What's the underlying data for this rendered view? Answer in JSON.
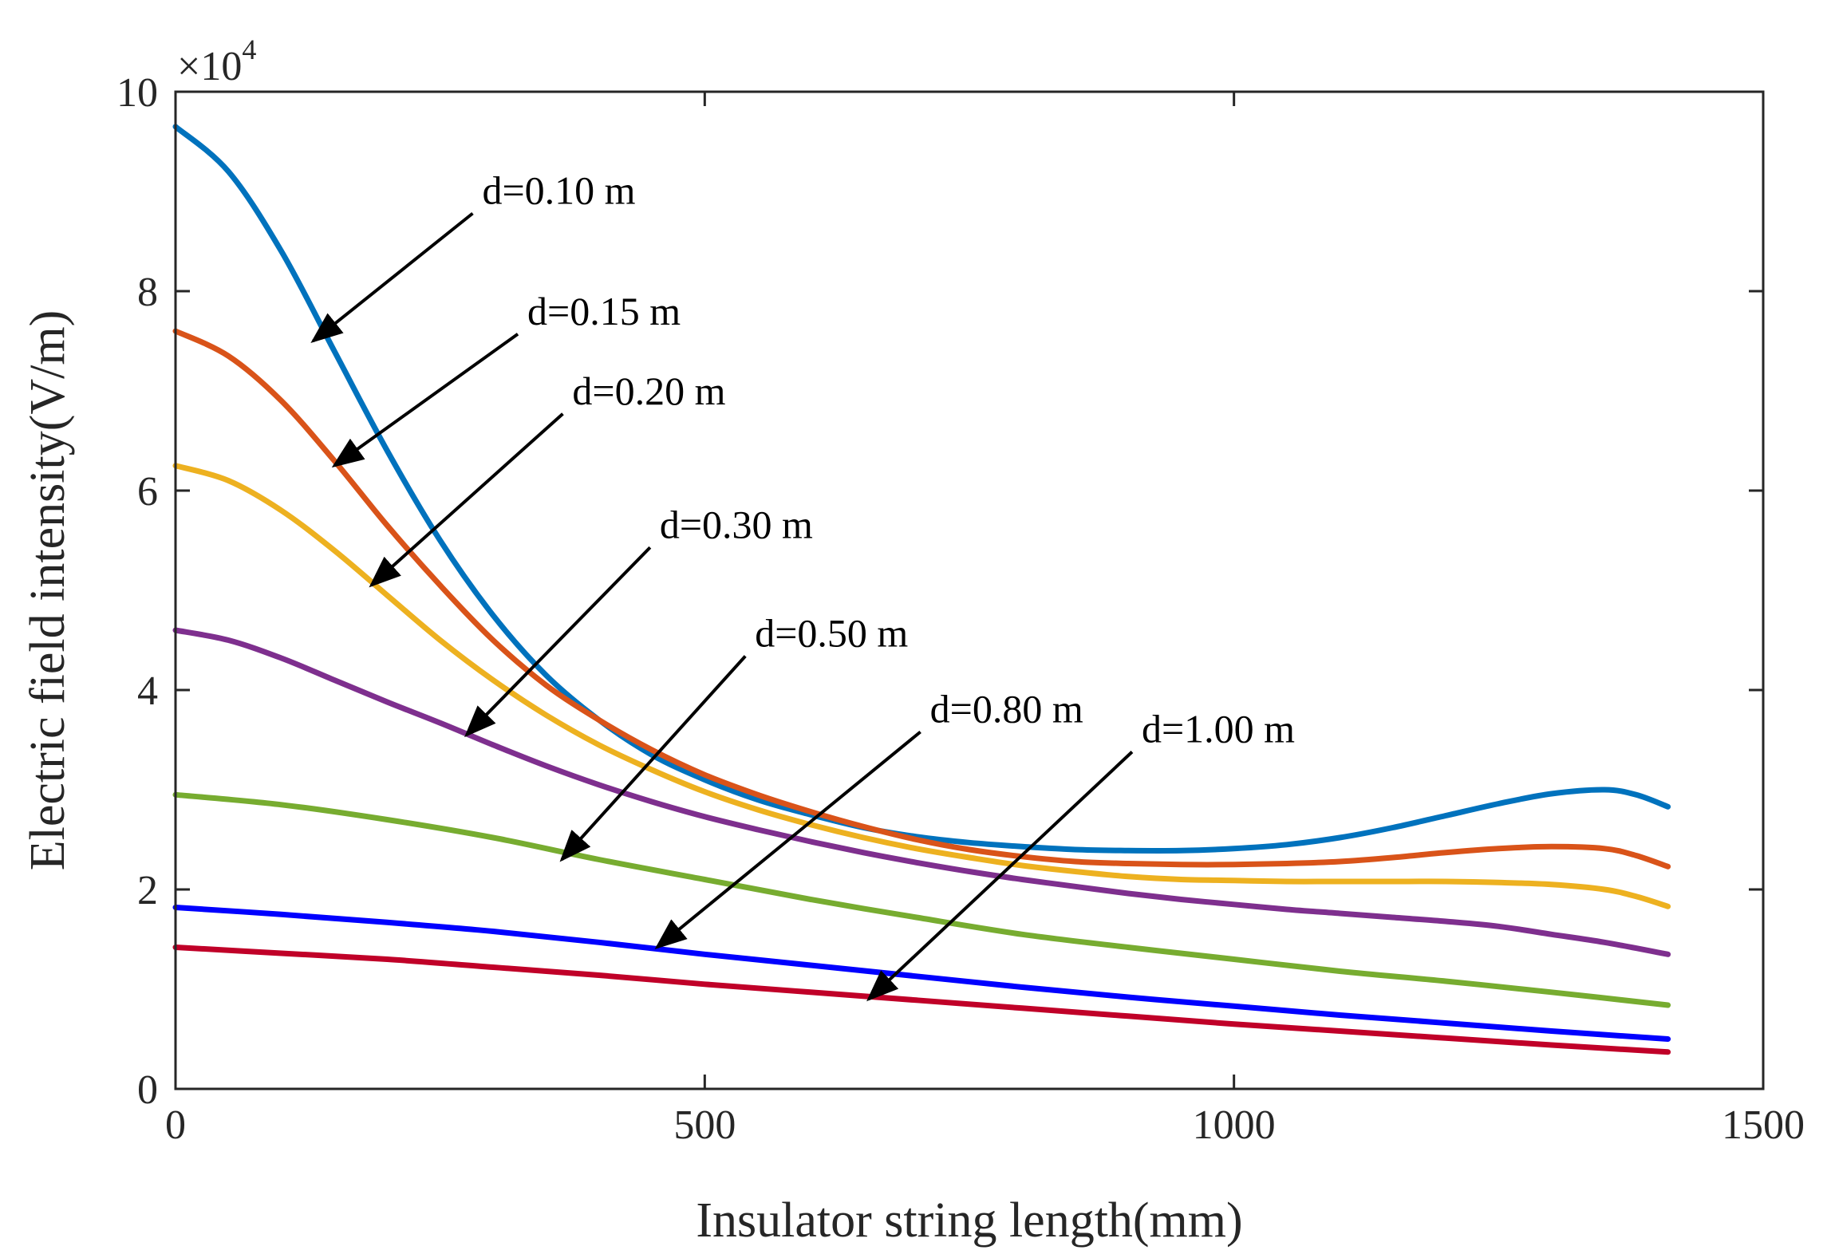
{
  "chart_data": {
    "type": "line",
    "title": "",
    "xlabel": "Insulator string length(mm)",
    "ylabel": "Electric field intensity(V/m)",
    "y_exponent_label": "×10",
    "y_exponent_power": "4",
    "xlim": [
      0,
      1500
    ],
    "ylim": [
      0,
      10
    ],
    "xticks": [
      0,
      500,
      1000,
      1500
    ],
    "xtick_labels": [
      "0",
      "500",
      "1000",
      "1500"
    ],
    "yticks": [
      0,
      2,
      4,
      6,
      8,
      10
    ],
    "ytick_labels": [
      "0",
      "2",
      "4",
      "6",
      "8",
      "10"
    ],
    "grid": false,
    "series": [
      {
        "name": "d=0.10 m",
        "color": "#0072bd",
        "x": [
          0,
          50,
          100,
          150,
          200,
          250,
          300,
          350,
          400,
          450,
          500,
          550,
          600,
          650,
          700,
          750,
          800,
          850,
          900,
          950,
          1000,
          1050,
          1100,
          1150,
          1200,
          1250,
          1300,
          1350,
          1380,
          1410
        ],
        "values": [
          9.65,
          9.2,
          8.4,
          7.4,
          6.4,
          5.5,
          4.75,
          4.15,
          3.7,
          3.35,
          3.1,
          2.9,
          2.75,
          2.62,
          2.53,
          2.47,
          2.43,
          2.4,
          2.39,
          2.39,
          2.41,
          2.45,
          2.52,
          2.62,
          2.74,
          2.86,
          2.96,
          3.0,
          2.95,
          2.83
        ]
      },
      {
        "name": "d=0.15 m",
        "color": "#d95319",
        "x": [
          0,
          50,
          100,
          150,
          200,
          250,
          300,
          350,
          400,
          450,
          500,
          550,
          600,
          650,
          700,
          750,
          800,
          850,
          900,
          950,
          1000,
          1050,
          1100,
          1150,
          1200,
          1250,
          1300,
          1350,
          1380,
          1410
        ],
        "values": [
          7.6,
          7.35,
          6.9,
          6.3,
          5.65,
          5.05,
          4.5,
          4.05,
          3.7,
          3.4,
          3.15,
          2.95,
          2.78,
          2.63,
          2.5,
          2.4,
          2.33,
          2.28,
          2.26,
          2.25,
          2.25,
          2.26,
          2.28,
          2.32,
          2.37,
          2.41,
          2.43,
          2.41,
          2.34,
          2.23
        ]
      },
      {
        "name": "d=0.20 m",
        "color": "#edb120",
        "x": [
          0,
          50,
          100,
          150,
          200,
          250,
          300,
          350,
          400,
          450,
          500,
          550,
          600,
          650,
          700,
          750,
          800,
          850,
          900,
          950,
          1000,
          1050,
          1100,
          1150,
          1200,
          1250,
          1300,
          1350,
          1380,
          1410
        ],
        "values": [
          6.25,
          6.1,
          5.8,
          5.4,
          4.95,
          4.5,
          4.1,
          3.75,
          3.45,
          3.2,
          2.98,
          2.8,
          2.65,
          2.52,
          2.41,
          2.32,
          2.24,
          2.18,
          2.13,
          2.1,
          2.09,
          2.08,
          2.08,
          2.08,
          2.08,
          2.07,
          2.05,
          2.0,
          1.93,
          1.83
        ]
      },
      {
        "name": "d=0.30 m",
        "color": "#7e2f8e",
        "x": [
          0,
          50,
          100,
          150,
          200,
          250,
          300,
          350,
          400,
          450,
          500,
          550,
          600,
          650,
          700,
          750,
          800,
          850,
          900,
          950,
          1000,
          1050,
          1100,
          1150,
          1200,
          1250,
          1300,
          1350,
          1410
        ],
        "values": [
          4.6,
          4.5,
          4.32,
          4.1,
          3.88,
          3.67,
          3.45,
          3.24,
          3.05,
          2.88,
          2.73,
          2.6,
          2.48,
          2.37,
          2.27,
          2.18,
          2.1,
          2.03,
          1.96,
          1.9,
          1.85,
          1.8,
          1.76,
          1.72,
          1.68,
          1.63,
          1.55,
          1.47,
          1.35
        ]
      },
      {
        "name": "d=0.50 m",
        "color": "#77ac30",
        "x": [
          0,
          100,
          200,
          300,
          400,
          500,
          600,
          700,
          800,
          900,
          1000,
          1100,
          1200,
          1300,
          1410
        ],
        "values": [
          2.95,
          2.85,
          2.7,
          2.52,
          2.3,
          2.1,
          1.9,
          1.72,
          1.55,
          1.42,
          1.3,
          1.18,
          1.08,
          0.97,
          0.84
        ]
      },
      {
        "name": "d=0.80 m",
        "color": "#0000ff",
        "x": [
          0,
          100,
          200,
          300,
          400,
          500,
          600,
          700,
          800,
          900,
          1000,
          1100,
          1200,
          1300,
          1410
        ],
        "values": [
          1.82,
          1.75,
          1.67,
          1.58,
          1.47,
          1.35,
          1.24,
          1.13,
          1.02,
          0.92,
          0.83,
          0.74,
          0.66,
          0.58,
          0.5
        ]
      },
      {
        "name": "d=1.00 m",
        "color": "#c00028",
        "x": [
          0,
          100,
          200,
          300,
          400,
          500,
          600,
          700,
          800,
          900,
          1000,
          1100,
          1200,
          1300,
          1410
        ],
        "values": [
          1.42,
          1.36,
          1.3,
          1.22,
          1.14,
          1.05,
          0.97,
          0.89,
          0.81,
          0.73,
          0.65,
          0.58,
          0.51,
          0.44,
          0.37
        ]
      }
    ],
    "annotations": [
      {
        "text": "d=0.10 m",
        "target_x": 130,
        "target_y": 7.5
      },
      {
        "text": "d=0.15 m",
        "target_x": 150,
        "target_y": 6.25
      },
      {
        "text": "d=0.20 m",
        "target_x": 185,
        "target_y": 5.05
      },
      {
        "text": "d=0.30 m",
        "target_x": 275,
        "target_y": 3.55
      },
      {
        "text": "d=0.50 m",
        "target_x": 365,
        "target_y": 2.3
      },
      {
        "text": "d=0.80 m",
        "target_x": 455,
        "target_y": 1.42
      },
      {
        "text": "d=1.00 m",
        "target_x": 655,
        "target_y": 0.9
      }
    ]
  }
}
